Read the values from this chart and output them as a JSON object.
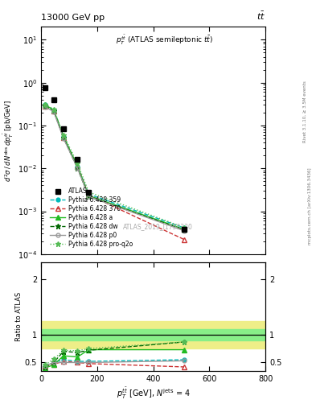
{
  "title_top": "13000 GeV pp",
  "title_right": "tt̅",
  "watermark": "ATLAS_2019_I1750330",
  "right_label1": "Rivet 3.1.10, ≥ 3.5M events",
  "right_label2": "mcplots.cern.ch [arXiv:1306.3436]",
  "x_values": [
    15,
    45,
    80,
    130,
    170,
    510
  ],
  "atlas_y": [
    0.75,
    0.4,
    0.085,
    0.016,
    0.0028,
    0.00038
  ],
  "pythia_359_y": [
    0.3,
    0.23,
    0.055,
    0.011,
    0.0025,
    0.00041
  ],
  "pythia_370_y": [
    0.28,
    0.22,
    0.053,
    0.011,
    0.0024,
    0.00022
  ],
  "pythia_a_y": [
    0.3,
    0.23,
    0.055,
    0.011,
    0.0023,
    0.00038
  ],
  "pythia_dw_y": [
    0.28,
    0.22,
    0.052,
    0.01,
    0.0022,
    0.00037
  ],
  "pythia_p0_y": [
    0.27,
    0.21,
    0.05,
    0.01,
    0.0022,
    0.00035
  ],
  "pythia_proq2o_y": [
    0.31,
    0.24,
    0.06,
    0.013,
    0.0028,
    0.00042
  ],
  "ratio_359": [
    0.44,
    0.5,
    0.55,
    0.52,
    0.52,
    0.55
  ],
  "ratio_370": [
    0.43,
    0.47,
    0.52,
    0.5,
    0.48,
    0.42
  ],
  "ratio_a": [
    0.4,
    0.46,
    0.62,
    0.6,
    0.73,
    0.73
  ],
  "ratio_dw": [
    0.42,
    0.5,
    0.7,
    0.68,
    0.72,
    0.87
  ],
  "ratio_p0": [
    0.44,
    0.5,
    0.5,
    0.5,
    0.5,
    0.53
  ],
  "ratio_proq2o": [
    0.46,
    0.56,
    0.72,
    0.71,
    0.75,
    0.87
  ],
  "inner_band_ylow": 0.9,
  "inner_band_yhigh": 1.1,
  "outer_band_ylow": 0.75,
  "outer_band_yhigh": 1.25,
  "color_359": "#00bbbb",
  "color_370": "#cc3333",
  "color_a": "#22bb22",
  "color_dw": "#006600",
  "color_p0": "#999999",
  "color_proq2o": "#55bb55",
  "inner_band_color": "#88ee88",
  "outer_band_color": "#eeee88",
  "ylim_main": [
    0.0001,
    20.0
  ],
  "ylim_ratio": [
    0.35,
    2.3
  ],
  "xlim": [
    0,
    800
  ],
  "yticks_ratio": [
    0.5,
    1.0,
    2.0
  ],
  "background_color": "#ffffff"
}
